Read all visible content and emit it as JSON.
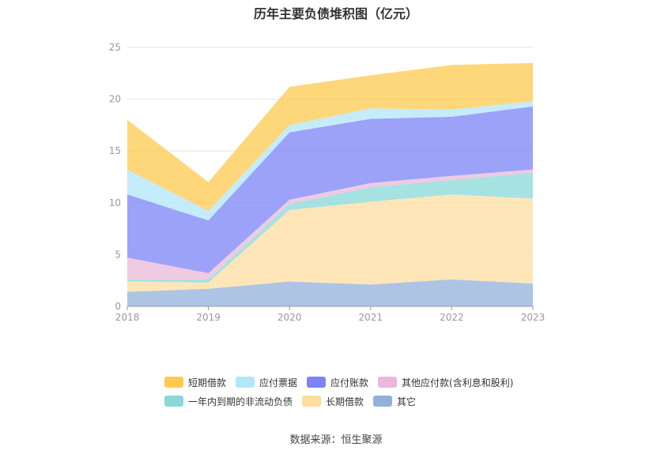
{
  "chart_data": {
    "type": "area",
    "stacked": true,
    "title": "历年主要负债堆积图（亿元）",
    "x": [
      "2018",
      "2019",
      "2020",
      "2021",
      "2022",
      "2023"
    ],
    "ylim": [
      0,
      25
    ],
    "yticks": [
      0,
      5,
      10,
      15,
      20,
      25
    ],
    "grid": true,
    "legend_position": "bottom",
    "series": [
      {
        "name": "其它",
        "color": "#93b0dc",
        "values": [
          1.4,
          1.7,
          2.4,
          2.1,
          2.6,
          2.2
        ]
      },
      {
        "name": "长期借款",
        "color": "#ffdda0",
        "values": [
          1.0,
          0.6,
          6.9,
          8.0,
          8.2,
          8.2
        ]
      },
      {
        "name": "一年内到期的非流动负债",
        "color": "#8ad8d8",
        "values": [
          0.2,
          0.3,
          0.6,
          1.4,
          1.4,
          2.5
        ]
      },
      {
        "name": "其他应付款(含利息和股利)",
        "color": "#eab8d8",
        "values": [
          2.1,
          0.6,
          0.4,
          0.4,
          0.4,
          0.3
        ]
      },
      {
        "name": "应付账款",
        "color": "#7c83f7",
        "values": [
          6.1,
          5.1,
          6.5,
          6.2,
          5.7,
          6.1
        ]
      },
      {
        "name": "应付票据",
        "color": "#b2e6fa",
        "values": [
          2.4,
          0.9,
          0.7,
          1.0,
          0.7,
          0.5
        ]
      },
      {
        "name": "短期借款",
        "color": "#ffca4f",
        "values": [
          4.8,
          2.8,
          3.7,
          3.2,
          4.3,
          3.7
        ]
      }
    ],
    "legend_rows": [
      [
        "短期借款",
        "应付票据",
        "应付账款",
        "其他应付款(含利息和股利)"
      ],
      [
        "一年内到期的非流动负债",
        "长期借款",
        "其它"
      ]
    ]
  },
  "source_text": "数据来源：恒生聚源"
}
